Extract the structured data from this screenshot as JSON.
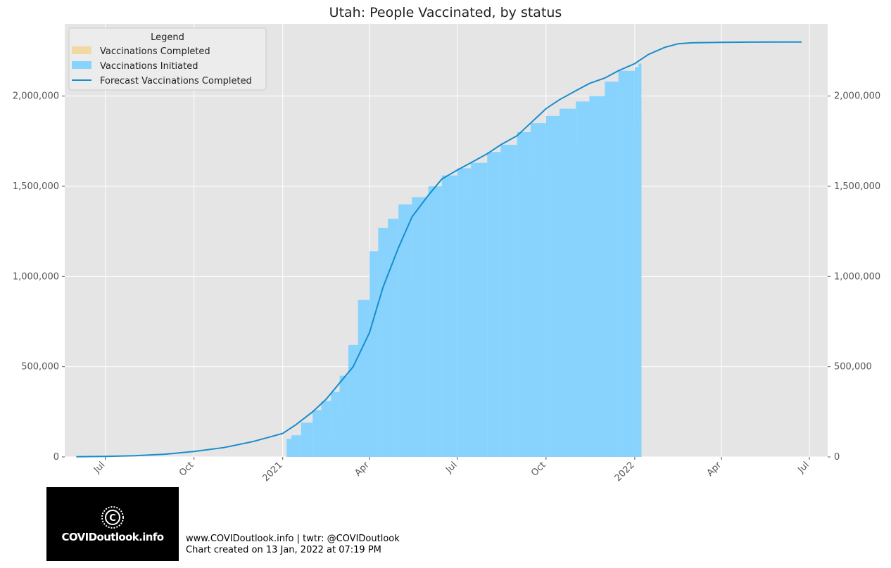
{
  "colors": {
    "background": "#e5e5e5",
    "grid": "#ffffff",
    "completed": "#f2d8a2",
    "initiated": "#87d3fd",
    "forecast": "#1a8ccc"
  },
  "footer": {
    "line1": "www.COVIDoutlook.info | twtr: @COVIDoutlook",
    "line2": "Chart created on 13 Jan, 2022 at 07:19 PM"
  },
  "logo": {
    "text": "COVIDoutlook.info",
    "icon": "covid-c-logo-icon"
  },
  "chart_data": {
    "type": "area",
    "title": "Utah: People Vaccinated, by status",
    "xlabel": "",
    "ylabel": "",
    "x_range": [
      "2020-05-20",
      "2022-07-20"
    ],
    "ylim": [
      0,
      2400000
    ],
    "y_ticks": [
      0,
      500000,
      1000000,
      1500000,
      2000000
    ],
    "y_tick_labels": [
      "0",
      "500,000",
      "1,000,000",
      "1,500,000",
      "2,000,000"
    ],
    "x_ticks": [
      "2020-07-01",
      "2020-10-01",
      "2021-01-01",
      "2021-04-01",
      "2021-07-01",
      "2021-10-01",
      "2022-01-01",
      "2022-04-01",
      "2022-07-01"
    ],
    "x_tick_labels": [
      "Jul",
      "Oct",
      "2021",
      "Apr",
      "Jul",
      "Oct",
      "2022",
      "Apr",
      "Jul"
    ],
    "grid": true,
    "legend": {
      "title": "Legend",
      "position": "top-left",
      "entries": [
        "Vaccinations Completed",
        "Vaccinations Initiated",
        "Forecast Vaccinations Completed"
      ]
    },
    "series": [
      {
        "name": "Vaccinations Completed",
        "style": "bars",
        "x": [
          "2021-01-10",
          "2021-01-20",
          "2021-02-01",
          "2021-02-10",
          "2021-02-20",
          "2021-03-01",
          "2021-03-10",
          "2021-03-20",
          "2021-04-01",
          "2021-04-10",
          "2021-04-20",
          "2021-05-01",
          "2021-05-15",
          "2021-06-01",
          "2021-06-15",
          "2021-07-01",
          "2021-07-05",
          "2021-07-15",
          "2021-08-01",
          "2021-08-15",
          "2021-09-01",
          "2021-09-15",
          "2021-10-01",
          "2021-10-15",
          "2021-11-01",
          "2021-11-15",
          "2021-12-01",
          "2021-12-15",
          "2022-01-01",
          "2022-01-05"
        ],
        "values": [
          0,
          20000,
          60000,
          110000,
          170000,
          240000,
          310000,
          400000,
          600000,
          760000,
          870000,
          960000,
          1030000,
          1090000,
          1160000,
          1200000,
          1400000,
          1420000,
          1470000,
          1520000,
          1570000,
          1620000,
          1650000,
          1690000,
          1730000,
          1760000,
          1790000,
          1840000,
          1880000,
          1900000
        ]
      },
      {
        "name": "Vaccinations Initiated",
        "style": "bars",
        "x": [
          "2021-01-05",
          "2021-01-10",
          "2021-01-20",
          "2021-02-01",
          "2021-02-10",
          "2021-02-20",
          "2021-03-01",
          "2021-03-10",
          "2021-03-20",
          "2021-04-01",
          "2021-04-10",
          "2021-04-20",
          "2021-05-01",
          "2021-05-15",
          "2021-06-01",
          "2021-06-15",
          "2021-07-01",
          "2021-07-15",
          "2021-08-01",
          "2021-08-15",
          "2021-09-01",
          "2021-09-15",
          "2021-10-01",
          "2021-10-15",
          "2021-11-01",
          "2021-11-15",
          "2021-12-01",
          "2021-12-15",
          "2022-01-01",
          "2022-01-05"
        ],
        "values": [
          100000,
          120000,
          190000,
          260000,
          310000,
          360000,
          450000,
          620000,
          870000,
          1140000,
          1270000,
          1320000,
          1400000,
          1440000,
          1500000,
          1560000,
          1600000,
          1630000,
          1690000,
          1730000,
          1800000,
          1850000,
          1890000,
          1930000,
          1970000,
          2000000,
          2080000,
          2140000,
          2160000,
          2180000
        ]
      },
      {
        "name": "Forecast Vaccinations Completed",
        "style": "line",
        "x": [
          "2020-06-01",
          "2020-07-01",
          "2020-08-01",
          "2020-09-01",
          "2020-10-01",
          "2020-11-01",
          "2020-12-01",
          "2021-01-01",
          "2021-01-15",
          "2021-02-01",
          "2021-02-15",
          "2021-03-01",
          "2021-03-15",
          "2021-04-01",
          "2021-04-15",
          "2021-05-01",
          "2021-05-15",
          "2021-06-01",
          "2021-06-15",
          "2021-07-01",
          "2021-07-15",
          "2021-08-01",
          "2021-08-15",
          "2021-09-01",
          "2021-09-15",
          "2021-10-01",
          "2021-10-15",
          "2021-11-01",
          "2021-11-15",
          "2021-12-01",
          "2021-12-15",
          "2022-01-01",
          "2022-01-15",
          "2022-02-01",
          "2022-02-15",
          "2022-03-01",
          "2022-04-01",
          "2022-05-01",
          "2022-06-01",
          "2022-06-23"
        ],
        "values": [
          1000,
          3000,
          7000,
          15000,
          30000,
          52000,
          85000,
          130000,
          180000,
          250000,
          320000,
          410000,
          500000,
          690000,
          940000,
          1160000,
          1330000,
          1450000,
          1540000,
          1590000,
          1630000,
          1680000,
          1730000,
          1780000,
          1850000,
          1930000,
          1980000,
          2030000,
          2070000,
          2100000,
          2140000,
          2180000,
          2230000,
          2270000,
          2290000,
          2295000,
          2298000,
          2299000,
          2300000,
          2300000
        ]
      }
    ]
  }
}
